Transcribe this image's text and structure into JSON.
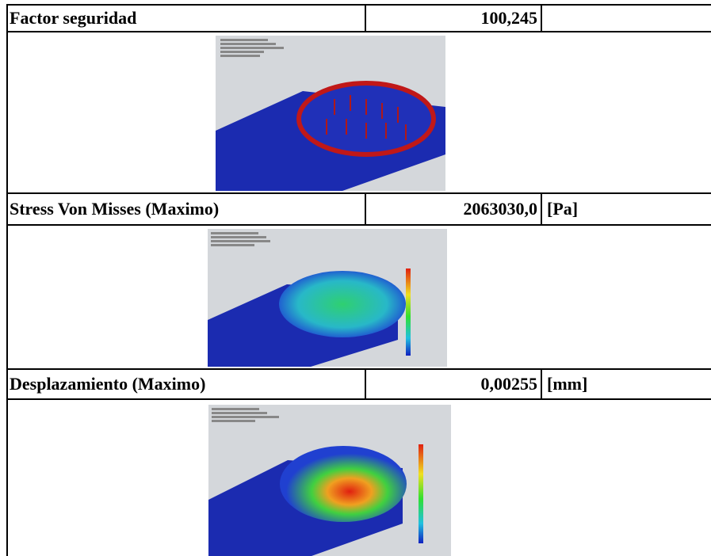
{
  "rows": [
    {
      "label": "Factor seguridad",
      "value": "100,245"
    },
    {
      "label": "Stress Von Misses (Maximo)",
      "value": "2063030,0",
      "unit": "[Pa]"
    },
    {
      "label": "Desplazamiento (Maximo)",
      "value": "0,00255",
      "unit": "[mm]"
    }
  ]
}
